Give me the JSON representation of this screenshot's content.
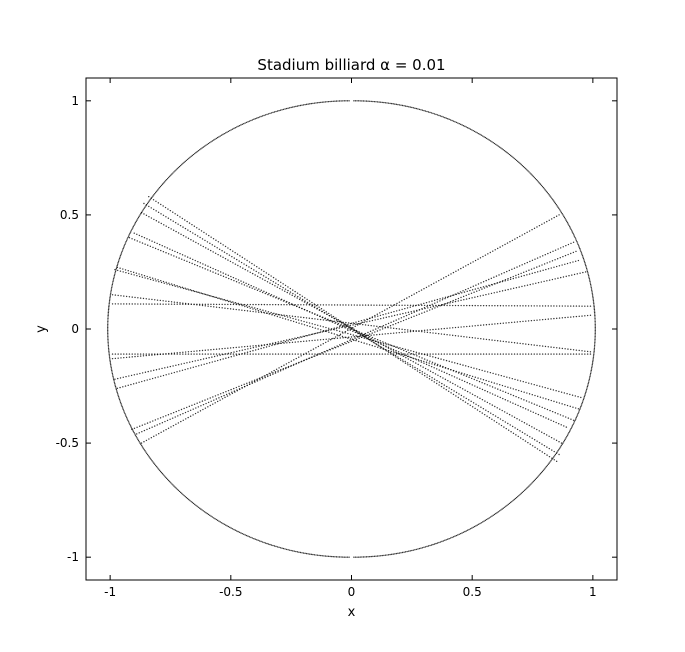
{
  "chart_data": {
    "type": "scatter",
    "title": "Stadium billiard  α = 0.01",
    "xlabel": "x",
    "ylabel": "y",
    "xlim": [
      -1.1,
      1.1
    ],
    "ylim": [
      -1.1,
      1.1
    ],
    "xticks": [
      -1,
      -0.5,
      0,
      0.5,
      1
    ],
    "xtick_labels": [
      "-1",
      "-0.5",
      "0",
      "0.5",
      "1"
    ],
    "yticks": [
      -1,
      -0.5,
      0,
      0.5,
      1
    ],
    "ytick_labels": [
      "-1",
      "-0.5",
      "0",
      "0.5",
      "1"
    ],
    "grid": false,
    "legend": false,
    "point_color": "#000000",
    "boundary": {
      "shape": "stadium",
      "alpha": 0.01,
      "radius": 1.0
    },
    "trajectory_segments": [
      {
        "x": [
          -0.84,
          0.85
        ],
        "y": [
          0.58,
          -0.58
        ]
      },
      {
        "x": [
          -0.86,
          0.86
        ],
        "y": [
          0.55,
          -0.55
        ]
      },
      {
        "x": [
          -0.87,
          0.87
        ],
        "y": [
          0.51,
          -0.5
        ]
      },
      {
        "x": [
          -0.9,
          0.89
        ],
        "y": [
          0.42,
          -0.43
        ]
      },
      {
        "x": [
          -0.92,
          0.92
        ],
        "y": [
          0.4,
          -0.4
        ]
      },
      {
        "x": [
          -0.97,
          0.94
        ],
        "y": [
          0.27,
          -0.35
        ]
      },
      {
        "x": [
          -0.98,
          0.95
        ],
        "y": [
          0.26,
          -0.3
        ]
      },
      {
        "x": [
          -0.99,
          0.99
        ],
        "y": [
          0.15,
          -0.1
        ]
      },
      {
        "x": [
          -0.99,
          0.99
        ],
        "y": [
          0.11,
          0.1
        ]
      },
      {
        "x": [
          -0.99,
          0.99
        ],
        "y": [
          -0.11,
          -0.11
        ]
      },
      {
        "x": [
          -0.99,
          0.99
        ],
        "y": [
          -0.13,
          0.06
        ]
      },
      {
        "x": [
          -0.98,
          0.97
        ],
        "y": [
          -0.22,
          0.25
        ]
      },
      {
        "x": [
          -0.97,
          0.94
        ],
        "y": [
          -0.26,
          0.3
        ]
      },
      {
        "x": [
          -0.91,
          0.93
        ],
        "y": [
          -0.44,
          0.34
        ]
      },
      {
        "x": [
          -0.89,
          0.92
        ],
        "y": [
          -0.46,
          0.38
        ]
      },
      {
        "x": [
          -0.87,
          0.86
        ],
        "y": [
          -0.5,
          0.5
        ]
      }
    ]
  }
}
